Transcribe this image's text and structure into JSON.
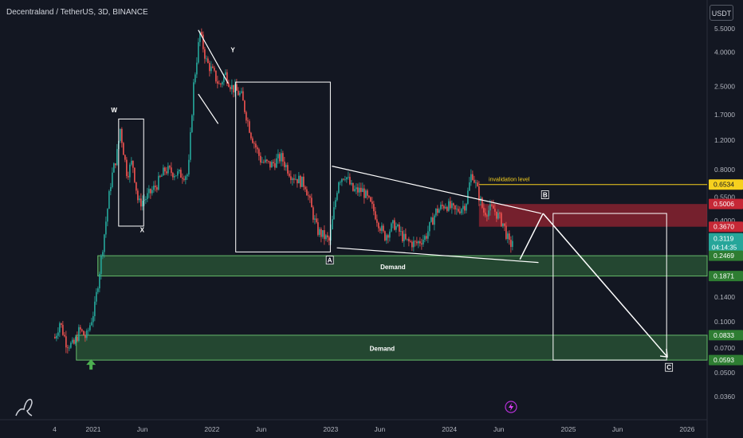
{
  "title": "Decentraland / TetherUS, 3D, BINANCE",
  "currency_button": "USDT",
  "colors": {
    "background": "#131722",
    "candle_up": "#26a69a",
    "candle_down": "#ef5350",
    "annotation": "#ffffff",
    "demand_zone": "#4caf50",
    "supply_zone": "#c62836",
    "invalidation": "#f7d11e",
    "current_price": "#26a69a"
  },
  "icons": [
    "tradingview-logo-icon",
    "lightning-icon",
    "up-arrow-icon"
  ],
  "chart_data": {
    "type": "candlestick",
    "yscale": "log",
    "ylim": [
      0.03,
      7.5
    ],
    "y_ticks": [
      "5.5000",
      "4.0000",
      "2.5000",
      "1.7000",
      "1.2000",
      "0.8000",
      "0.5500",
      "0.4000",
      "0.2800",
      "0.1400",
      "0.1000",
      "0.0700",
      "0.0500",
      "0.0360"
    ],
    "x_ticks": [
      "4",
      "2021",
      "Jun",
      "2022",
      "Jun",
      "2023",
      "Jun",
      "2024",
      "Jun",
      "2025",
      "Jun",
      "2026"
    ],
    "price_tags": [
      {
        "text": "0.6534",
        "value": 0.6534,
        "color": "#f7d11e",
        "text_color": "#131722"
      },
      {
        "text": "0.5006",
        "value": 0.5006,
        "color": "#c62836",
        "text_color": "#ffffff"
      },
      {
        "text": "0.3670",
        "value": 0.367,
        "color": "#c62836",
        "text_color": "#ffffff"
      },
      {
        "text": "0.3119",
        "value": 0.3119,
        "color": "#26a69a",
        "text_color": "#ffffff",
        "countdown": "04:14:35"
      },
      {
        "text": "0.2469",
        "value": 0.2469,
        "color": "#2e7d32",
        "text_color": "#ffffff"
      },
      {
        "text": "0.1871",
        "value": 0.1871,
        "color": "#2e7d32",
        "text_color": "#ffffff"
      },
      {
        "text": "0.0833",
        "value": 0.0833,
        "color": "#2e7d32",
        "text_color": "#ffffff"
      },
      {
        "text": "0.0593",
        "value": 0.0593,
        "color": "#2e7d32",
        "text_color": "#ffffff"
      }
    ],
    "zones": [
      {
        "label": "Demand",
        "type": "demand",
        "top": 0.2469,
        "bottom": 0.1871
      },
      {
        "label": "Demand",
        "type": "demand",
        "top": 0.0833,
        "bottom": 0.0593
      },
      {
        "label": "",
        "type": "supply",
        "top": 0.5006,
        "bottom": 0.367
      }
    ],
    "invalidation": {
      "label": "invalidation level",
      "value": 0.6534
    },
    "wave_labels": [
      "W",
      "X",
      "Y",
      "A",
      "B",
      "C"
    ],
    "series": [
      {
        "date": "2020-09-05",
        "price": 0.08
      },
      {
        "date": "2020-09-20",
        "price": 0.1
      },
      {
        "date": "2020-10-10",
        "price": 0.075
      },
      {
        "date": "2020-11-01",
        "price": 0.072
      },
      {
        "date": "2020-11-20",
        "price": 0.09
      },
      {
        "date": "2020-12-10",
        "price": 0.08
      },
      {
        "date": "2021-01-05",
        "price": 0.12
      },
      {
        "date": "2021-02-01",
        "price": 0.3
      },
      {
        "date": "2021-02-25",
        "price": 0.7
      },
      {
        "date": "2021-03-15",
        "price": 1.0
      },
      {
        "date": "2021-03-25",
        "price": 1.4
      },
      {
        "date": "2021-04-05",
        "price": 1.0
      },
      {
        "date": "2021-04-15",
        "price": 0.75
      },
      {
        "date": "2021-05-01",
        "price": 0.9
      },
      {
        "date": "2021-05-20",
        "price": 0.5
      },
      {
        "date": "2021-06-15",
        "price": 0.55
      },
      {
        "date": "2021-07-15",
        "price": 0.65
      },
      {
        "date": "2021-08-10",
        "price": 0.8
      },
      {
        "date": "2021-09-20",
        "price": 0.75
      },
      {
        "date": "2021-10-20",
        "price": 0.75
      },
      {
        "date": "2021-11-05",
        "price": 2.5
      },
      {
        "date": "2021-11-25",
        "price": 5.2
      },
      {
        "date": "2021-12-15",
        "price": 3.5
      },
      {
        "date": "2022-01-05",
        "price": 3.0
      },
      {
        "date": "2022-01-25",
        "price": 2.5
      },
      {
        "date": "2022-02-10",
        "price": 3.0
      },
      {
        "date": "2022-03-01",
        "price": 2.5
      },
      {
        "date": "2022-04-01",
        "price": 2.2
      },
      {
        "date": "2022-05-01",
        "price": 1.3
      },
      {
        "date": "2022-06-01",
        "price": 0.9
      },
      {
        "date": "2022-07-01",
        "price": 0.85
      },
      {
        "date": "2022-08-01",
        "price": 0.95
      },
      {
        "date": "2022-09-01",
        "price": 0.75
      },
      {
        "date": "2022-10-15",
        "price": 0.65
      },
      {
        "date": "2022-11-20",
        "price": 0.35
      },
      {
        "date": "2022-12-28",
        "price": 0.3
      },
      {
        "date": "2023-01-25",
        "price": 0.7
      },
      {
        "date": "2023-02-15",
        "price": 0.75
      },
      {
        "date": "2023-03-10",
        "price": 0.6
      },
      {
        "date": "2023-04-10",
        "price": 0.6
      },
      {
        "date": "2023-05-15",
        "price": 0.45
      },
      {
        "date": "2023-06-15",
        "price": 0.32
      },
      {
        "date": "2023-07-15",
        "price": 0.38
      },
      {
        "date": "2023-08-20",
        "price": 0.3
      },
      {
        "date": "2023-09-20",
        "price": 0.29
      },
      {
        "date": "2023-10-20",
        "price": 0.32
      },
      {
        "date": "2023-11-20",
        "price": 0.45
      },
      {
        "date": "2023-12-20",
        "price": 0.5
      },
      {
        "date": "2024-01-20",
        "price": 0.45
      },
      {
        "date": "2024-02-20",
        "price": 0.5
      },
      {
        "date": "2024-03-10",
        "price": 0.78
      },
      {
        "date": "2024-03-25",
        "price": 0.62
      },
      {
        "date": "2024-04-15",
        "price": 0.45
      },
      {
        "date": "2024-05-15",
        "price": 0.47
      },
      {
        "date": "2024-06-15",
        "price": 0.38
      },
      {
        "date": "2024-07-05",
        "price": 0.28
      },
      {
        "date": "2024-07-15",
        "price": 0.3119
      }
    ]
  }
}
